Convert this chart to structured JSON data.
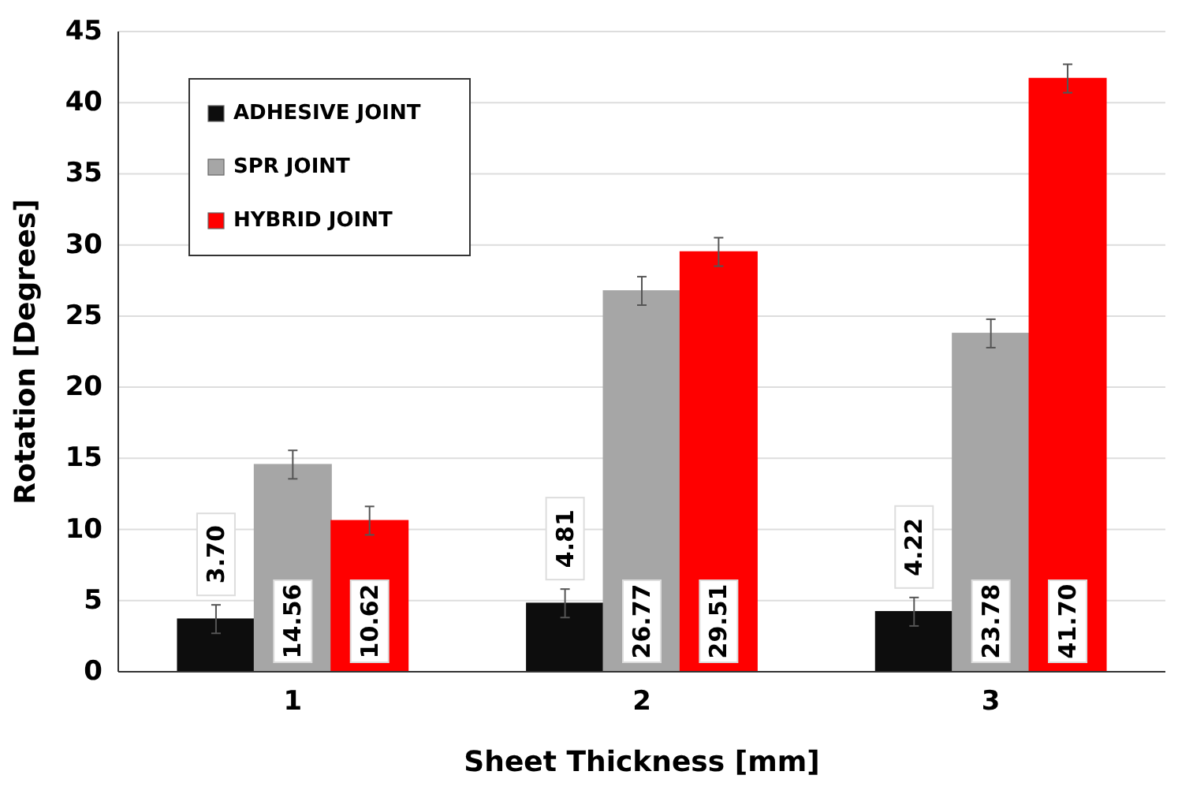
{
  "chart_data": {
    "type": "bar",
    "xlabel": "Sheet Thickness [mm]",
    "ylabel": "Rotation [Degrees]",
    "categories": [
      "1",
      "2",
      "3"
    ],
    "series": [
      {
        "name": "ADHESIVE JOINT",
        "color": "#0d0d0d",
        "values": [
          3.7,
          4.81,
          4.22
        ],
        "value_labels": [
          "3.70",
          "4.81",
          "4.22"
        ],
        "errors": [
          1,
          1,
          1
        ]
      },
      {
        "name": "SPR JOINT",
        "color": "#a6a6a6",
        "values": [
          14.56,
          26.77,
          23.78
        ],
        "value_labels": [
          "14.56",
          "26.77",
          "23.78"
        ],
        "errors": [
          1,
          1,
          1
        ]
      },
      {
        "name": "HYBRID JOINT",
        "color": "#ff0000",
        "values": [
          10.62,
          29.51,
          41.7
        ],
        "value_labels": [
          "10.62",
          "29.51",
          "41.70"
        ],
        "errors": [
          1,
          1,
          1
        ]
      }
    ],
    "ylim": [
      0,
      45
    ],
    "yticks": [
      0,
      5,
      10,
      15,
      20,
      25,
      30,
      35,
      40,
      45
    ],
    "grid": "y",
    "legend": "top left"
  }
}
